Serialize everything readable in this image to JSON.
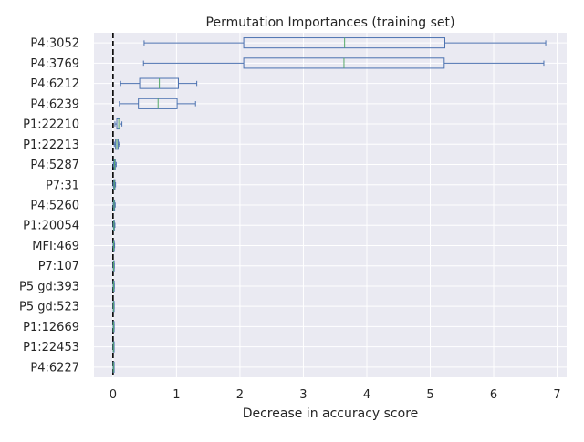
{
  "chart_data": {
    "type": "box",
    "title": "Permutation Importances (training set)",
    "xlabel": "Decrease in accuracy score",
    "ylabel": "",
    "xlim": [
      -0.3,
      7.15
    ],
    "xticks": [
      0,
      1,
      2,
      3,
      4,
      5,
      6,
      7
    ],
    "grid": true,
    "reference_line": {
      "x": 0,
      "style": "dashed",
      "color": "#000000"
    },
    "colors": {
      "background": "#eaeaf2",
      "grid": "#ffffff",
      "box": "#4c72b0",
      "median": "#55a868"
    },
    "features": [
      {
        "label": "P4:3052",
        "whisker_low": 0.49,
        "q1": 2.06,
        "median": 3.65,
        "q3": 5.23,
        "whisker_high": 6.82
      },
      {
        "label": "P4:3769",
        "whisker_low": 0.48,
        "q1": 2.06,
        "median": 3.64,
        "q3": 5.22,
        "whisker_high": 6.79
      },
      {
        "label": "P4:6212",
        "whisker_low": 0.12,
        "q1": 0.42,
        "median": 0.73,
        "q3": 1.03,
        "whisker_high": 1.32
      },
      {
        "label": "P4:6239",
        "whisker_low": 0.1,
        "q1": 0.4,
        "median": 0.71,
        "q3": 1.01,
        "whisker_high": 1.3
      },
      {
        "label": "P1:22210",
        "whisker_low": 0.03,
        "q1": 0.06,
        "median": 0.09,
        "q3": 0.11,
        "whisker_high": 0.14
      },
      {
        "label": "P1:22213",
        "whisker_low": 0.02,
        "q1": 0.04,
        "median": 0.06,
        "q3": 0.08,
        "whisker_high": 0.1
      },
      {
        "label": "P4:5287",
        "whisker_low": 0.005,
        "q1": 0.015,
        "median": 0.025,
        "q3": 0.035,
        "whisker_high": 0.05
      },
      {
        "label": "P7:31",
        "whisker_low": 0.003,
        "q1": 0.01,
        "median": 0.02,
        "q3": 0.03,
        "whisker_high": 0.04
      },
      {
        "label": "P4:5260",
        "whisker_low": 0.002,
        "q1": 0.008,
        "median": 0.015,
        "q3": 0.025,
        "whisker_high": 0.035
      },
      {
        "label": "P1:20054",
        "whisker_low": 0.002,
        "q1": 0.007,
        "median": 0.013,
        "q3": 0.02,
        "whisker_high": 0.03
      },
      {
        "label": "MFI:469",
        "whisker_low": 0.001,
        "q1": 0.005,
        "median": 0.01,
        "q3": 0.017,
        "whisker_high": 0.025
      },
      {
        "label": "P7:107",
        "whisker_low": 0.001,
        "q1": 0.004,
        "median": 0.009,
        "q3": 0.015,
        "whisker_high": 0.02
      },
      {
        "label": "P5 gd:393",
        "whisker_low": 0.001,
        "q1": 0.004,
        "median": 0.008,
        "q3": 0.014,
        "whisker_high": 0.02
      },
      {
        "label": "P5 gd:523",
        "whisker_low": 0.001,
        "q1": 0.003,
        "median": 0.007,
        "q3": 0.012,
        "whisker_high": 0.018
      },
      {
        "label": "P1:12669",
        "whisker_low": 0.001,
        "q1": 0.003,
        "median": 0.007,
        "q3": 0.012,
        "whisker_high": 0.018
      },
      {
        "label": "P1:22453",
        "whisker_low": 0.001,
        "q1": 0.003,
        "median": 0.006,
        "q3": 0.011,
        "whisker_high": 0.016
      },
      {
        "label": "P4:6227",
        "whisker_low": 0.001,
        "q1": 0.003,
        "median": 0.006,
        "q3": 0.011,
        "whisker_high": 0.016
      }
    ]
  }
}
